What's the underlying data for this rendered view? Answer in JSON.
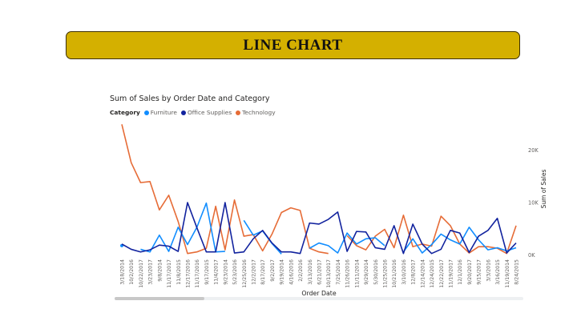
{
  "banner": {
    "title": "LINE CHART"
  },
  "chart_data": {
    "type": "line",
    "title": "Sum of Sales by Order Date and Category",
    "xlabel": "Order Date",
    "ylabel": "Sum of Sales",
    "legend_title": "Category",
    "legend_position": "top-left",
    "y_axis_position": "right",
    "ylim": [
      0,
      25000
    ],
    "yticks": [
      {
        "value": 0,
        "label": "0K"
      },
      {
        "value": 10000,
        "label": "10K"
      },
      {
        "value": 20000,
        "label": "20K"
      }
    ],
    "grid": false,
    "categories": [
      "3/18/2014",
      "10/2/2016",
      "10/22/2017",
      "3/23/2017",
      "9/8/2014",
      "11/17/2017",
      "11/8/2015",
      "12/17/2016",
      "11/17/2016",
      "9/17/2015",
      "11/4/2017",
      "9/23/2014",
      "5/23/2016",
      "12/25/2016",
      "12/2/2017",
      "8/17/2017",
      "9/2/2017",
      "9/19/2014",
      "4/16/2016",
      "2/2/2016",
      "3/13/2016",
      "6/21/2017",
      "10/13/2017",
      "7/25/2014",
      "11/26/2016",
      "11/11/2014",
      "9/29/2014",
      "5/30/2016",
      "11/25/2016",
      "10/21/2016",
      "3/10/2016",
      "12/8/2017",
      "12/14/2014",
      "12/24/2015",
      "12/22/2017",
      "11/19/2017",
      "12/1/2016",
      "9/20/2017",
      "9/15/2017",
      "3/3/2016",
      "3/16/2015",
      "11/19/2014",
      "8/24/2015"
    ],
    "series": [
      {
        "name": "Furniture",
        "color": "#118dff",
        "values": [
          1700,
          null,
          1000,
          500,
          3700,
          600,
          5200,
          1900,
          5200,
          9800,
          500,
          600,
          null,
          6500,
          3700,
          4500,
          2100,
          100,
          null,
          null,
          1200,
          2200,
          1700,
          300,
          4100,
          2000,
          3000,
          3200,
          1700,
          null,
          500,
          3000,
          300,
          1900,
          3900,
          2800,
          2000,
          5200,
          2800,
          900,
          1300,
          700,
          1300
        ]
      },
      {
        "name": "Office Supplies",
        "color": "#12239e",
        "values": [
          2000,
          1000,
          500,
          900,
          1800,
          1600,
          600,
          9900,
          5100,
          500,
          500,
          9900,
          300,
          500,
          3000,
          4600,
          2200,
          500,
          500,
          200,
          6000,
          5800,
          6700,
          8100,
          600,
          4400,
          4300,
          1300,
          1000,
          5500,
          200,
          5800,
          2000,
          200,
          1000,
          4600,
          4100,
          400,
          3500,
          4600,
          6900,
          300,
          2200
        ]
      },
      {
        "name": "Technology",
        "color": "#e66c37",
        "values": [
          24800,
          17500,
          13700,
          13900,
          8500,
          11300,
          6300,
          200,
          500,
          1200,
          9200,
          900,
          10400,
          3500,
          3800,
          700,
          3900,
          8000,
          8900,
          8400,
          1200,
          500,
          200,
          null,
          3600,
          1700,
          900,
          3500,
          4800,
          1300,
          7500,
          1500,
          2000,
          1600,
          7300,
          5500,
          2000,
          300,
          1500,
          1500,
          1200,
          200,
          5500
        ]
      }
    ]
  }
}
